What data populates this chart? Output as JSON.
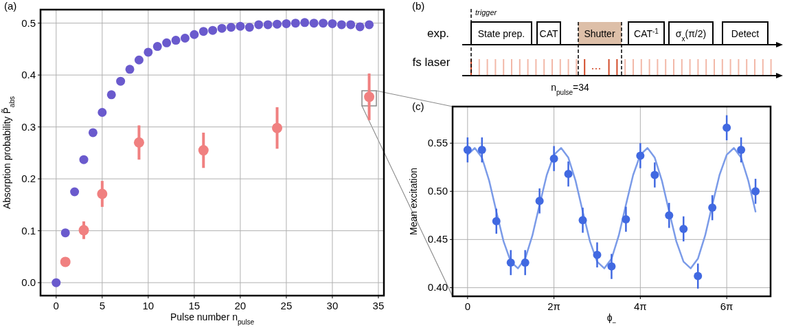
{
  "chart_data": [
    {
      "type": "scatter",
      "title": "(a)",
      "xlabel": "Pulse number n$_{pulse}$",
      "ylabel": "Absorption probability P̃$_{abs}$",
      "xlim": [
        -1.7,
        35.6
      ],
      "ylim": [
        -0.025,
        0.526
      ],
      "xticks": [
        0,
        5,
        10,
        15,
        20,
        25,
        30,
        35
      ],
      "yticks": [
        {
          "value": 0,
          "label": "0.0"
        },
        0.1,
        0.2,
        0.3,
        0.4,
        0.5
      ],
      "grid": true,
      "marker": "circle",
      "series": [
        {
          "color": "#6a5acd",
          "x": [
            0,
            1,
            2,
            3,
            4,
            5,
            6,
            7,
            8,
            9,
            10,
            11,
            12,
            13,
            14,
            15,
            16,
            17,
            18,
            19,
            20,
            21,
            22,
            23,
            24,
            25,
            26,
            27,
            28,
            29,
            30,
            31,
            32,
            33,
            34
          ],
          "values": [
            0.0,
            0.096,
            0.175,
            0.237,
            0.289,
            0.328,
            0.362,
            0.388,
            0.411,
            0.429,
            0.444,
            0.455,
            0.462,
            0.467,
            0.471,
            0.478,
            0.484,
            0.486,
            0.49,
            0.492,
            0.494,
            0.492,
            0.497,
            0.497,
            0.498,
            0.499,
            0.5,
            0.501,
            0.5,
            0.5,
            0.499,
            0.497,
            0.497,
            0.493,
            0.497
          ]
        },
        {
          "color": "#f08080",
          "x": [
            1,
            3,
            5,
            9,
            16,
            24,
            34
          ],
          "values": [
            0.04,
            0.101,
            0.171,
            0.27,
            0.255,
            0.298,
            0.358
          ],
          "errors": [
            null,
            0.017,
            0.025,
            0.033,
            0.034,
            0.04,
            0.045
          ]
        }
      ]
    },
    {
      "type": "other",
      "title": "(b)",
      "annotations": [
        "trigger",
        "exp.",
        "fs laser",
        "State prep.",
        "CAT",
        "Shutter",
        "CAT$^{-1}$",
        "σ$_{x}$(π/2)",
        "Detect",
        "n$_{pulse}$=34"
      ]
    },
    {
      "type": "scatter",
      "title": "(c)",
      "xlabel": "ϕ$_{−}$",
      "ylabel": "Mean excitation",
      "xlim": [
        -1.09,
        22.04
      ],
      "ylim": [
        0.391,
        0.588
      ],
      "xticks": [
        0,
        {
          "value": 6.283,
          "label": "2π"
        },
        {
          "value": 12.566,
          "label": "4π"
        },
        {
          "value": 18.85,
          "label": "6π"
        }
      ],
      "yticks": [
        {
          "value": 0.4,
          "label": "0.40"
        },
        0.45,
        {
          "value": 0.5,
          "label": "0.50"
        },
        0.55
      ],
      "grid": true,
      "marker": "circle",
      "series": [
        {
          "type": "line",
          "marker": "none",
          "color": "#7b9be8",
          "x": [
            0,
            0.524,
            1.047,
            1.571,
            2.094,
            2.618,
            3.142,
            3.665,
            4.189,
            4.712,
            5.236,
            5.76,
            6.283,
            6.807,
            7.33,
            7.854,
            8.378,
            8.901,
            9.425,
            9.948,
            10.472,
            10.996,
            11.519,
            12.043,
            12.566,
            13.09,
            13.614,
            14.137,
            14.661,
            15.184,
            15.708,
            16.232,
            16.755,
            17.279,
            17.802,
            18.326,
            18.85,
            19.373,
            19.897,
            20.42,
            20.944
          ],
          "values": [
            0.538,
            0.545,
            0.535,
            0.511,
            0.479,
            0.448,
            0.427,
            0.42,
            0.43,
            0.454,
            0.486,
            0.517,
            0.538,
            0.545,
            0.535,
            0.511,
            0.479,
            0.448,
            0.427,
            0.42,
            0.43,
            0.454,
            0.486,
            0.517,
            0.538,
            0.545,
            0.535,
            0.511,
            0.479,
            0.448,
            0.427,
            0.42,
            0.43,
            0.454,
            0.486,
            0.517,
            0.538,
            0.545,
            0.535,
            0.511,
            0.479
          ]
        },
        {
          "type": "scatter",
          "color": "#4169e1",
          "x": [
            0,
            1.047,
            2.094,
            3.142,
            4.189,
            5.236,
            6.283,
            7.33,
            8.378,
            9.425,
            10.472,
            11.519,
            12.566,
            13.614,
            14.661,
            15.708,
            16.755,
            17.802,
            18.85,
            19.897,
            20.944
          ],
          "values": [
            0.543,
            0.543,
            0.469,
            0.426,
            0.426,
            0.49,
            0.534,
            0.518,
            0.47,
            0.434,
            0.422,
            0.471,
            0.537,
            0.517,
            0.475,
            0.461,
            0.412,
            0.483,
            0.566,
            0.543,
            0.5
          ],
          "errors": [
            0.013,
            0.013,
            0.013,
            0.013,
            0.013,
            0.013,
            0.013,
            0.013,
            0.013,
            0.013,
            0.013,
            0.013,
            0.013,
            0.013,
            0.013,
            0.013,
            0.013,
            0.013,
            0.013,
            0.013,
            0.013
          ]
        }
      ]
    }
  ]
}
